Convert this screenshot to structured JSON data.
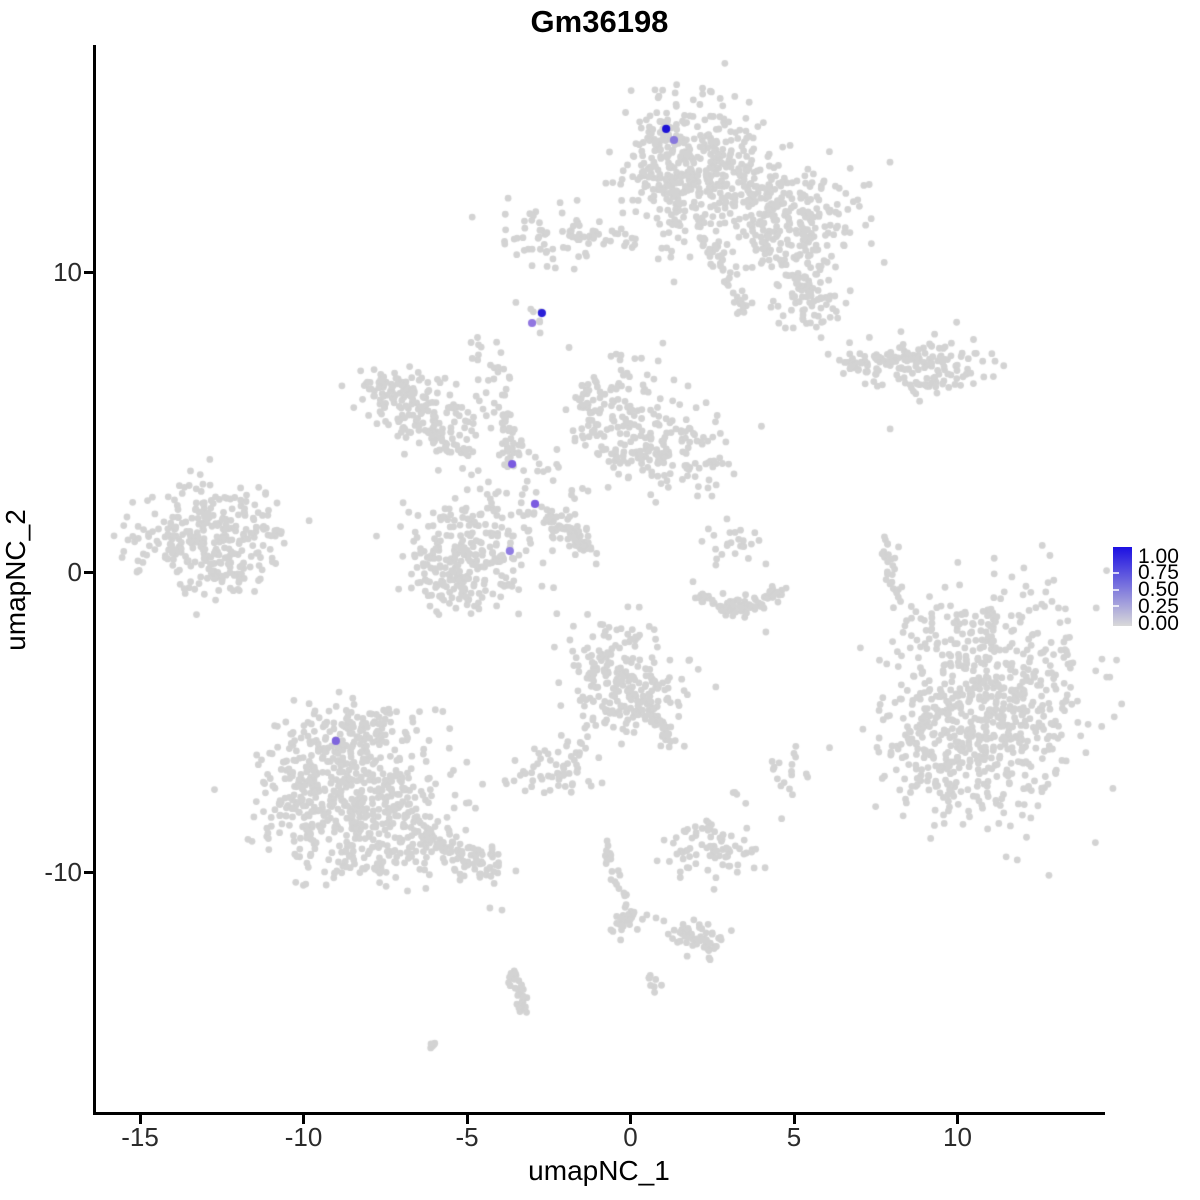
{
  "figure": {
    "title": "Gm36198"
  },
  "axes": {
    "x_label": "umapNC_1",
    "y_label": "umapNC_2"
  },
  "legend": {
    "labels": [
      "1.00",
      "0.75",
      "0.50",
      "0.25",
      "0.00"
    ],
    "values": [
      1.0,
      0.75,
      0.5,
      0.25,
      0.0
    ],
    "top_color": "#1c10e2",
    "bottom_color": "#d9d9d9"
  },
  "chart_data": {
    "type": "scatter",
    "title": "Gm36198",
    "xlabel": "umapNC_1",
    "ylabel": "umapNC_2",
    "x_ticks": [
      -15,
      -10,
      -5,
      0,
      5,
      10
    ],
    "y_ticks": [
      10,
      0,
      -10
    ],
    "xlim": [
      -16.4,
      14.5
    ],
    "ylim": [
      -18.1,
      17.6
    ],
    "grid": false,
    "legend_position": "right",
    "colorbar_range": [
      0.0,
      1.0
    ],
    "background_point_color": "#d3d3d3",
    "point_radius_px": 3.4,
    "clusters": [
      {
        "type": "blob",
        "x": 1.67,
        "y": 14.07,
        "sx": 1.07,
        "sy": 1.0,
        "n": 220
      },
      {
        "type": "blob",
        "x": 2.58,
        "y": 12.9,
        "sx": 1.07,
        "sy": 0.93,
        "n": 150
      },
      {
        "type": "blob",
        "x": 0.9,
        "y": 13.23,
        "sx": 0.55,
        "sy": 0.73,
        "n": 60
      },
      {
        "type": "blob",
        "x": 4.63,
        "y": 12.0,
        "sx": 1.22,
        "sy": 1.0,
        "n": 200
      },
      {
        "type": "blob",
        "x": 5.18,
        "y": 10.9,
        "sx": 0.76,
        "sy": 0.67,
        "n": 60
      },
      {
        "type": "line",
        "x1": 2.13,
        "y1": 11.57,
        "x2": 3.5,
        "y2": 8.73,
        "w": 0.18,
        "n": 45
      },
      {
        "type": "line",
        "x1": 1.36,
        "y1": 12.4,
        "x2": 1.12,
        "y2": 10.13,
        "w": 0.2,
        "n": 12
      },
      {
        "type": "blob",
        "x": -2.31,
        "y": 11.3,
        "sx": 0.92,
        "sy": 0.53,
        "n": 70
      },
      {
        "type": "line",
        "x1": -1.39,
        "y1": 11.23,
        "x2": 0.44,
        "y2": 10.97,
        "w": 0.15,
        "n": 16
      },
      {
        "type": "line",
        "x1": 3.96,
        "y1": 11.07,
        "x2": 5.55,
        "y2": 9.23,
        "w": 0.2,
        "n": 30
      },
      {
        "type": "blob",
        "x": 5.58,
        "y": 9.07,
        "sx": 0.6,
        "sy": 0.6,
        "n": 55
      },
      {
        "type": "line",
        "x1": 6.56,
        "y1": 6.9,
        "x2": 8.61,
        "y2": 7.17,
        "w": 0.3,
        "n": 70
      },
      {
        "type": "blob",
        "x": 9.31,
        "y": 6.87,
        "sx": 0.85,
        "sy": 0.55,
        "n": 90
      },
      {
        "type": "line",
        "x1": 8.49,
        "y1": 6.03,
        "x2": 9.04,
        "y2": 6.37,
        "w": 0.12,
        "n": 10
      },
      {
        "type": "blob",
        "x": -2.83,
        "y": 8.5,
        "sx": 0.26,
        "sy": 0.2,
        "n": 7
      },
      {
        "type": "blob",
        "x": -4.51,
        "y": 7.33,
        "sx": 0.25,
        "sy": 0.3,
        "n": 10
      },
      {
        "type": "blob",
        "x": -7.05,
        "y": 5.73,
        "sx": 0.67,
        "sy": 0.53,
        "n": 80
      },
      {
        "type": "blob",
        "x": -5.83,
        "y": 4.9,
        "sx": 0.67,
        "sy": 0.53,
        "n": 80
      },
      {
        "type": "blob",
        "x": -7.42,
        "y": 6.2,
        "sx": 0.4,
        "sy": 0.3,
        "n": 25
      },
      {
        "type": "line",
        "x1": -6.07,
        "y1": 4.53,
        "x2": -4.85,
        "y2": 3.8,
        "w": 0.15,
        "n": 22
      },
      {
        "type": "line",
        "x1": -4.08,
        "y1": 7.0,
        "x2": -3.59,
        "y2": 3.47,
        "w": 0.2,
        "n": 55
      },
      {
        "type": "blob",
        "x": -3.07,
        "y": 2.73,
        "sx": 0.75,
        "sy": 0.85,
        "n": 40
      },
      {
        "type": "line",
        "x1": -2.61,
        "y1": 2.0,
        "x2": -1.02,
        "y2": 0.53,
        "w": 0.17,
        "n": 90
      },
      {
        "type": "blob",
        "x": -0.38,
        "y": 5.57,
        "sx": 0.86,
        "sy": 0.73,
        "n": 90
      },
      {
        "type": "blob",
        "x": 1.27,
        "y": 4.13,
        "sx": 0.92,
        "sy": 0.73,
        "n": 130
      },
      {
        "type": "line",
        "x1": -1.3,
        "y1": 6.23,
        "x2": -1.18,
        "y2": 4.07,
        "w": 0.18,
        "n": 20
      },
      {
        "type": "line",
        "x1": -0.84,
        "y1": 3.9,
        "x2": 0.75,
        "y2": 3.8,
        "w": 0.12,
        "n": 22
      },
      {
        "type": "blob",
        "x": -4.97,
        "y": 0.73,
        "sx": 0.92,
        "sy": 0.93,
        "n": 180
      },
      {
        "type": "blob",
        "x": -5.37,
        "y": -0.1,
        "sx": 0.76,
        "sy": 0.67,
        "n": 90
      },
      {
        "type": "blob",
        "x": -13.47,
        "y": 1.23,
        "sx": 1.07,
        "sy": 0.83,
        "n": 180
      },
      {
        "type": "blob",
        "x": -12.4,
        "y": 0.73,
        "sx": 0.92,
        "sy": 0.67,
        "n": 80
      },
      {
        "type": "blob",
        "x": -11.94,
        "y": 2.23,
        "sx": 0.55,
        "sy": 0.33,
        "n": 22
      },
      {
        "type": "line",
        "x1": -11.48,
        "y1": 1.47,
        "x2": -10.66,
        "y2": 1.3,
        "w": 0.1,
        "n": 10
      },
      {
        "type": "blob",
        "x": -12.55,
        "y": 0.0,
        "sx": 0.46,
        "sy": 0.27,
        "n": 20
      },
      {
        "type": "arc",
        "x": 3.2,
        "y": -0.43,
        "rx": 1.28,
        "ry": 0.75,
        "a1": 195,
        "a2": 345,
        "w": 0.14,
        "n": 85
      },
      {
        "type": "blob",
        "x": 3.1,
        "y": 0.9,
        "sx": 0.37,
        "sy": 0.33,
        "n": 22
      },
      {
        "type": "line",
        "x1": 8.15,
        "y1": 1.3,
        "x2": 7.81,
        "y2": 0.47,
        "w": 0.12,
        "n": 10
      },
      {
        "type": "line",
        "x1": 7.81,
        "y1": 0.47,
        "x2": 8.0,
        "y2": -0.43,
        "w": 0.12,
        "n": 9
      },
      {
        "type": "line",
        "x1": 8.0,
        "y1": -0.43,
        "x2": 8.21,
        "y2": -1.07,
        "w": 0.12,
        "n": 8
      },
      {
        "type": "blob",
        "x": 11.3,
        "y": -3.93,
        "sx": 1.38,
        "sy": 1.83,
        "n": 400
      },
      {
        "type": "blob",
        "x": 10.54,
        "y": -5.6,
        "sx": 1.38,
        "sy": 1.33,
        "n": 250
      },
      {
        "type": "blob",
        "x": 8.85,
        "y": -5.43,
        "sx": 0.67,
        "sy": 1.5,
        "n": 90
      },
      {
        "type": "blob",
        "x": 10.08,
        "y": -1.93,
        "sx": 0.92,
        "sy": 0.4,
        "n": 40
      },
      {
        "type": "blob",
        "x": -0.26,
        "y": -3.43,
        "sx": 0.86,
        "sy": 0.83,
        "n": 160
      },
      {
        "type": "blob",
        "x": 0.29,
        "y": -4.27,
        "sx": 0.67,
        "sy": 0.6,
        "n": 80
      },
      {
        "type": "line",
        "x1": 0.6,
        "y1": -4.77,
        "x2": 1.21,
        "y2": -5.67,
        "w": 0.15,
        "n": 35
      },
      {
        "type": "line",
        "x1": -1.02,
        "y1": -4.7,
        "x2": -1.61,
        "y2": -6.13,
        "w": 0.1,
        "n": 12
      },
      {
        "type": "blob",
        "x": -2.4,
        "y": -6.67,
        "sx": 0.6,
        "sy": 0.43,
        "n": 55
      },
      {
        "type": "blob",
        "x": 4.82,
        "y": -6.77,
        "sx": 0.3,
        "sy": 0.45,
        "n": 16
      },
      {
        "type": "blob",
        "x": 3.26,
        "y": -7.43,
        "sx": 0.15,
        "sy": 0.12,
        "n": 4
      },
      {
        "type": "blob",
        "x": 2.43,
        "y": -8.47,
        "sx": 0.12,
        "sy": 0.18,
        "n": 4
      },
      {
        "type": "blob",
        "x": 2.43,
        "y": -9.2,
        "sx": 0.8,
        "sy": 0.45,
        "n": 75
      },
      {
        "type": "line",
        "x1": -0.84,
        "y1": -8.93,
        "x2": -0.57,
        "y2": -10.0,
        "w": 0.1,
        "n": 10
      },
      {
        "type": "line",
        "x1": -0.57,
        "y1": -10.0,
        "x2": 0.08,
        "y2": -11.53,
        "w": 0.1,
        "n": 14
      },
      {
        "type": "blob",
        "x": -0.11,
        "y": -11.67,
        "sx": 0.34,
        "sy": 0.3,
        "n": 22
      },
      {
        "type": "line",
        "x1": 1.64,
        "y1": -11.97,
        "x2": 2.61,
        "y2": -12.5,
        "w": 0.25,
        "n": 55
      },
      {
        "type": "line",
        "x1": -3.53,
        "y1": -13.33,
        "x2": -3.41,
        "y2": -14.1,
        "w": 0.14,
        "n": 16
      },
      {
        "type": "line",
        "x1": -3.41,
        "y1": -14.1,
        "x2": -3.17,
        "y2": -14.8,
        "w": 0.14,
        "n": 16
      },
      {
        "type": "line",
        "x1": 0.47,
        "y1": -13.47,
        "x2": 0.78,
        "y2": -13.87,
        "w": 0.1,
        "n": 8
      },
      {
        "type": "line",
        "x1": -6.16,
        "y1": -15.63,
        "x2": -5.89,
        "y2": -15.87,
        "w": 0.08,
        "n": 6
      },
      {
        "type": "blob",
        "x": -8.58,
        "y": -5.5,
        "sx": 1.07,
        "sy": 0.6,
        "n": 130
      },
      {
        "type": "blob",
        "x": -8.73,
        "y": -7.27,
        "sx": 1.38,
        "sy": 1.17,
        "n": 300
      },
      {
        "type": "blob",
        "x": -7.66,
        "y": -8.27,
        "sx": 1.38,
        "sy": 1.0,
        "n": 200
      },
      {
        "type": "blob",
        "x": -10.11,
        "y": -7.6,
        "sx": 0.55,
        "sy": 1.0,
        "n": 60
      },
      {
        "type": "line",
        "x1": -6.44,
        "y1": -8.7,
        "x2": -3.99,
        "y2": -9.93,
        "w": 0.3,
        "n": 90
      },
      {
        "type": "blob",
        "x": -7.96,
        "y": -9.77,
        "sx": 1.2,
        "sy": 0.35,
        "n": 30
      },
      {
        "type": "dots",
        "pts": [
          [
            7.94,
            4.77
          ],
          [
            -0.32,
            7.07
          ],
          [
            -0.93,
            6.0
          ],
          [
            0.99,
            7.63
          ],
          [
            1.82,
            10.5
          ],
          [
            1.33,
            9.67
          ],
          [
            -1.7,
            4.37
          ],
          [
            0.32,
            3.87
          ],
          [
            -1.3,
            2.7
          ],
          [
            2.49,
            2.53
          ],
          [
            2.95,
            1.77
          ],
          [
            2.61,
            0.23
          ],
          [
            4.14,
            0.27
          ],
          [
            4.14,
            -2.0
          ],
          [
            8.76,
            -2.27
          ],
          [
            4.6,
            -7.13
          ],
          [
            -0.87,
            -7.03
          ],
          [
            -4.3,
            -11.2
          ],
          [
            -3.93,
            -11.27
          ],
          [
            0.5,
            -11.43
          ],
          [
            0.78,
            -11.53
          ],
          [
            1.02,
            -11.63
          ]
        ]
      }
    ],
    "expressing_cells": [
      {
        "x": 1.09,
        "y": 14.77,
        "value": 1.0,
        "color": "#1b10d6"
      },
      {
        "x": 1.33,
        "y": 14.4,
        "value": 0.4,
        "color": "#8878dd"
      },
      {
        "x": -2.71,
        "y": 8.63,
        "value": 0.9,
        "color": "#2a1fd8"
      },
      {
        "x": -3.01,
        "y": 8.3,
        "value": 0.45,
        "color": "#9177e0"
      },
      {
        "x": -3.62,
        "y": 3.6,
        "value": 0.55,
        "color": "#7b5be0"
      },
      {
        "x": -2.92,
        "y": 2.27,
        "value": 0.55,
        "color": "#7b5be0"
      },
      {
        "x": -3.69,
        "y": 0.7,
        "value": 0.45,
        "color": "#8f7ce2"
      },
      {
        "x": -9.01,
        "y": -5.63,
        "value": 0.5,
        "color": "#7e64dd"
      }
    ]
  }
}
